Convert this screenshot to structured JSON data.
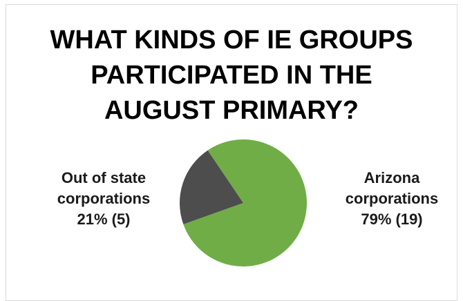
{
  "chart_data": {
    "type": "pie",
    "title_lines": [
      "WHAT KINDS OF IE GROUPS",
      "PARTICIPATED IN THE",
      "AUGUST PRIMARY?"
    ],
    "slices": [
      {
        "name": "Arizona corporations",
        "percent": 79,
        "count": 19,
        "label_lines": [
          "Arizona",
          "corporations",
          "79% (19)"
        ],
        "color": "#70ad47"
      },
      {
        "name": "Out of state corporations",
        "percent": 21,
        "count": 5,
        "label_lines": [
          "Out of state",
          "corporations",
          "21% (5)"
        ],
        "color": "#4d4d4d"
      }
    ]
  }
}
